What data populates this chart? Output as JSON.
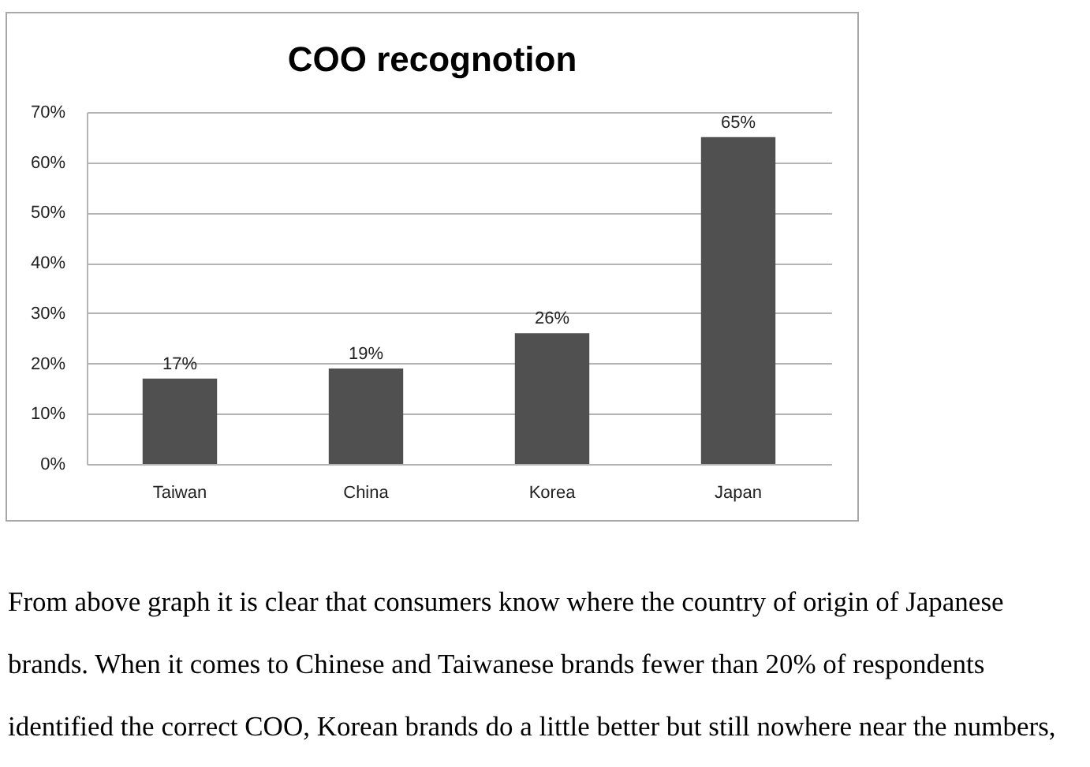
{
  "chart_data": {
    "type": "bar",
    "title": "COO recognotion",
    "categories": [
      "Taiwan",
      "China",
      "Korea",
      "Japan"
    ],
    "values": [
      17,
      19,
      26,
      65
    ],
    "color": "#505050",
    "value_labels": [
      "17%",
      "19%",
      "26%",
      "65%"
    ],
    "ylim": [
      0,
      70
    ],
    "yticks": [
      {
        "value": 0,
        "label": "0%"
      },
      {
        "value": 10,
        "label": "10%"
      },
      {
        "value": 20,
        "label": "20%"
      },
      {
        "value": 30,
        "label": "30%"
      },
      {
        "value": 40,
        "label": "40%"
      },
      {
        "value": 50,
        "label": "50%"
      },
      {
        "value": 60,
        "label": "60%"
      },
      {
        "value": 70,
        "label": "70%"
      }
    ],
    "grid": "y",
    "annotations": [
      "From above graph it is clear that consumers know where the country of origin of Japanese",
      "brands. When it comes to Chinese and Taiwanese brands fewer than 20% of respondents",
      "identified the correct COO, Korean brands do a little better but still nowhere near the numbers,"
    ]
  }
}
